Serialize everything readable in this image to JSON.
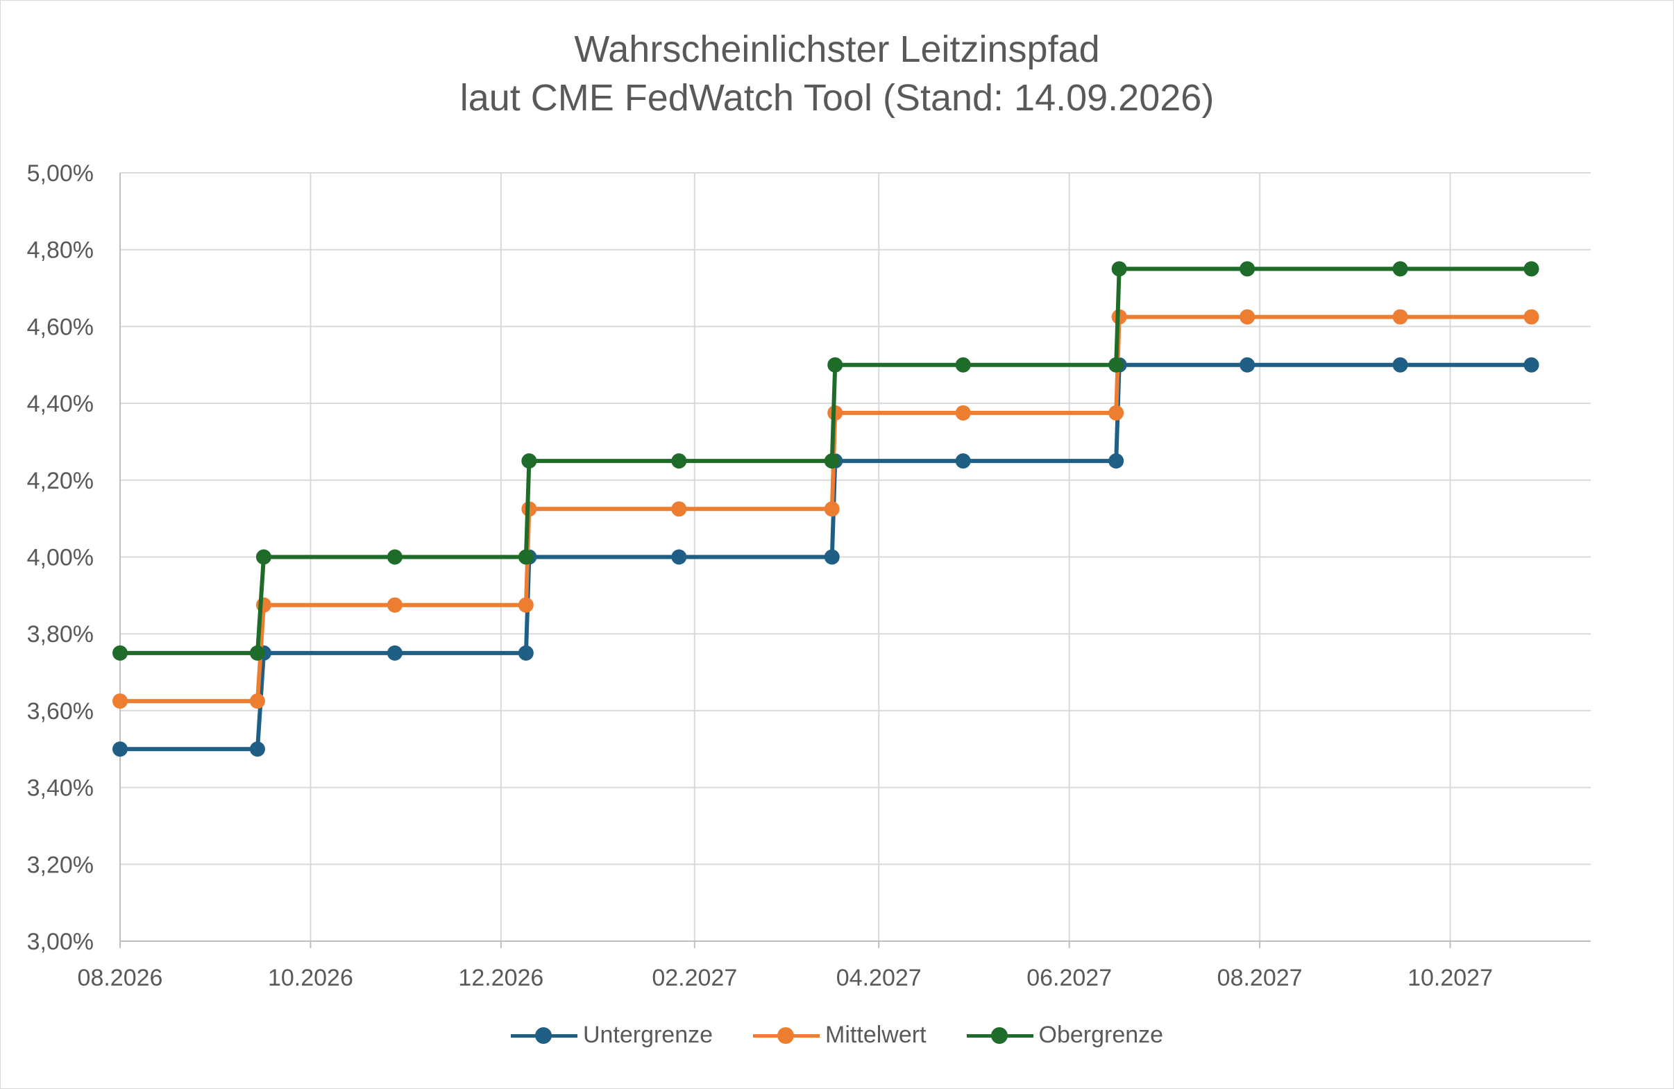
{
  "chart_data": {
    "type": "line",
    "title": "Wahrscheinlichster Leitzinspfad",
    "subtitle": "laut CME FedWatch Tool (Stand: 14.09.2026)",
    "xlabel": "",
    "ylabel": "",
    "ylim": [
      3.0,
      5.0
    ],
    "y_ticks": [
      "3,00%",
      "3,20%",
      "3,40%",
      "3,60%",
      "3,80%",
      "4,00%",
      "4,20%",
      "4,40%",
      "4,60%",
      "4,80%",
      "5,00%"
    ],
    "x_ticks": [
      "08.2026",
      "10.2026",
      "12.2026",
      "02.2027",
      "04.2027",
      "06.2027",
      "08.2027",
      "10.2027"
    ],
    "grid": true,
    "legend_position": "bottom",
    "x": [
      "2026-08-01",
      "2026-09-14",
      "2026-09-16",
      "2026-10-28",
      "2026-12-09",
      "2026-12-10",
      "2027-01-27",
      "2027-03-17",
      "2027-03-18",
      "2027-04-28",
      "2027-06-16",
      "2027-06-17",
      "2027-07-28",
      "2027-09-15",
      "2027-10-27"
    ],
    "series": [
      {
        "name": "Untergrenze",
        "color": "#1f5f86",
        "values": [
          3.5,
          3.5,
          3.75,
          3.75,
          3.75,
          4.0,
          4.0,
          4.0,
          4.25,
          4.25,
          4.25,
          4.5,
          4.5,
          4.5,
          4.5
        ]
      },
      {
        "name": "Mittelwert",
        "color": "#ed7d31",
        "values": [
          3.625,
          3.625,
          3.875,
          3.875,
          3.875,
          4.125,
          4.125,
          4.125,
          4.375,
          4.375,
          4.375,
          4.625,
          4.625,
          4.625,
          4.625
        ]
      },
      {
        "name": "Obergrenze",
        "color": "#1e6b2a",
        "values": [
          3.75,
          3.75,
          4.0,
          4.0,
          4.0,
          4.25,
          4.25,
          4.25,
          4.5,
          4.5,
          4.5,
          4.75,
          4.75,
          4.75,
          4.75
        ]
      }
    ]
  }
}
